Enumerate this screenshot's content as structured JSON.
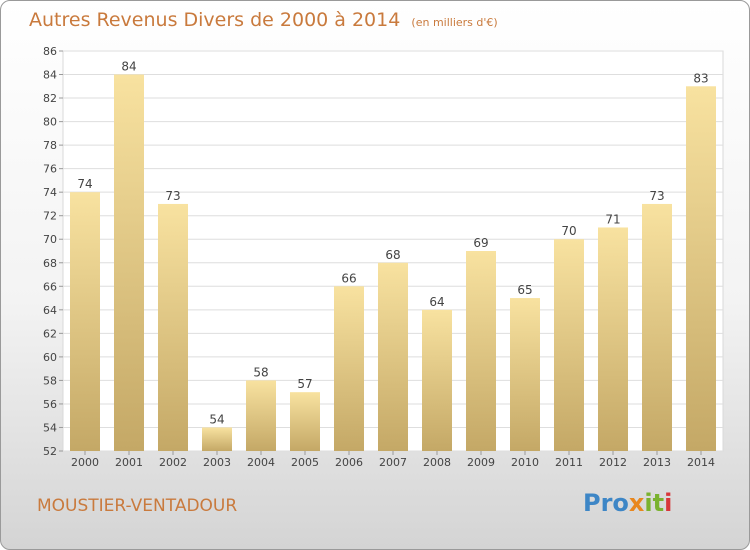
{
  "header": {
    "title": "Autres Revenus Divers de 2000 à 2014",
    "subtitle": "(en milliers d'€)"
  },
  "footer": {
    "commune": "MOUSTIER-VENTADOUR",
    "logo": {
      "text": "Proxiti",
      "parts": [
        "Pro",
        "x",
        "it",
        "i"
      ]
    }
  },
  "colors": {
    "title": "#c97a3d",
    "bar_top": "#f8e2a0",
    "bar_bottom": "#c4a866",
    "background_top": "#ffffff",
    "background_bottom": "#d4d4d4"
  },
  "chart_data": {
    "type": "bar",
    "title": "Autres Revenus Divers de 2000 à 2014",
    "subtitle": "(en milliers d'€)",
    "categories": [
      "2000",
      "2001",
      "2002",
      "2003",
      "2004",
      "2005",
      "2006",
      "2007",
      "2008",
      "2009",
      "2010",
      "2011",
      "2012",
      "2013",
      "2014"
    ],
    "values": [
      74,
      84,
      73,
      54,
      58,
      57,
      66,
      68,
      64,
      69,
      65,
      70,
      71,
      73,
      83
    ],
    "ylim": [
      52,
      86
    ],
    "yticks": [
      52,
      54,
      56,
      58,
      60,
      62,
      64,
      66,
      68,
      70,
      72,
      74,
      76,
      78,
      80,
      82,
      84,
      86
    ],
    "data_labels": true,
    "grid": true
  }
}
